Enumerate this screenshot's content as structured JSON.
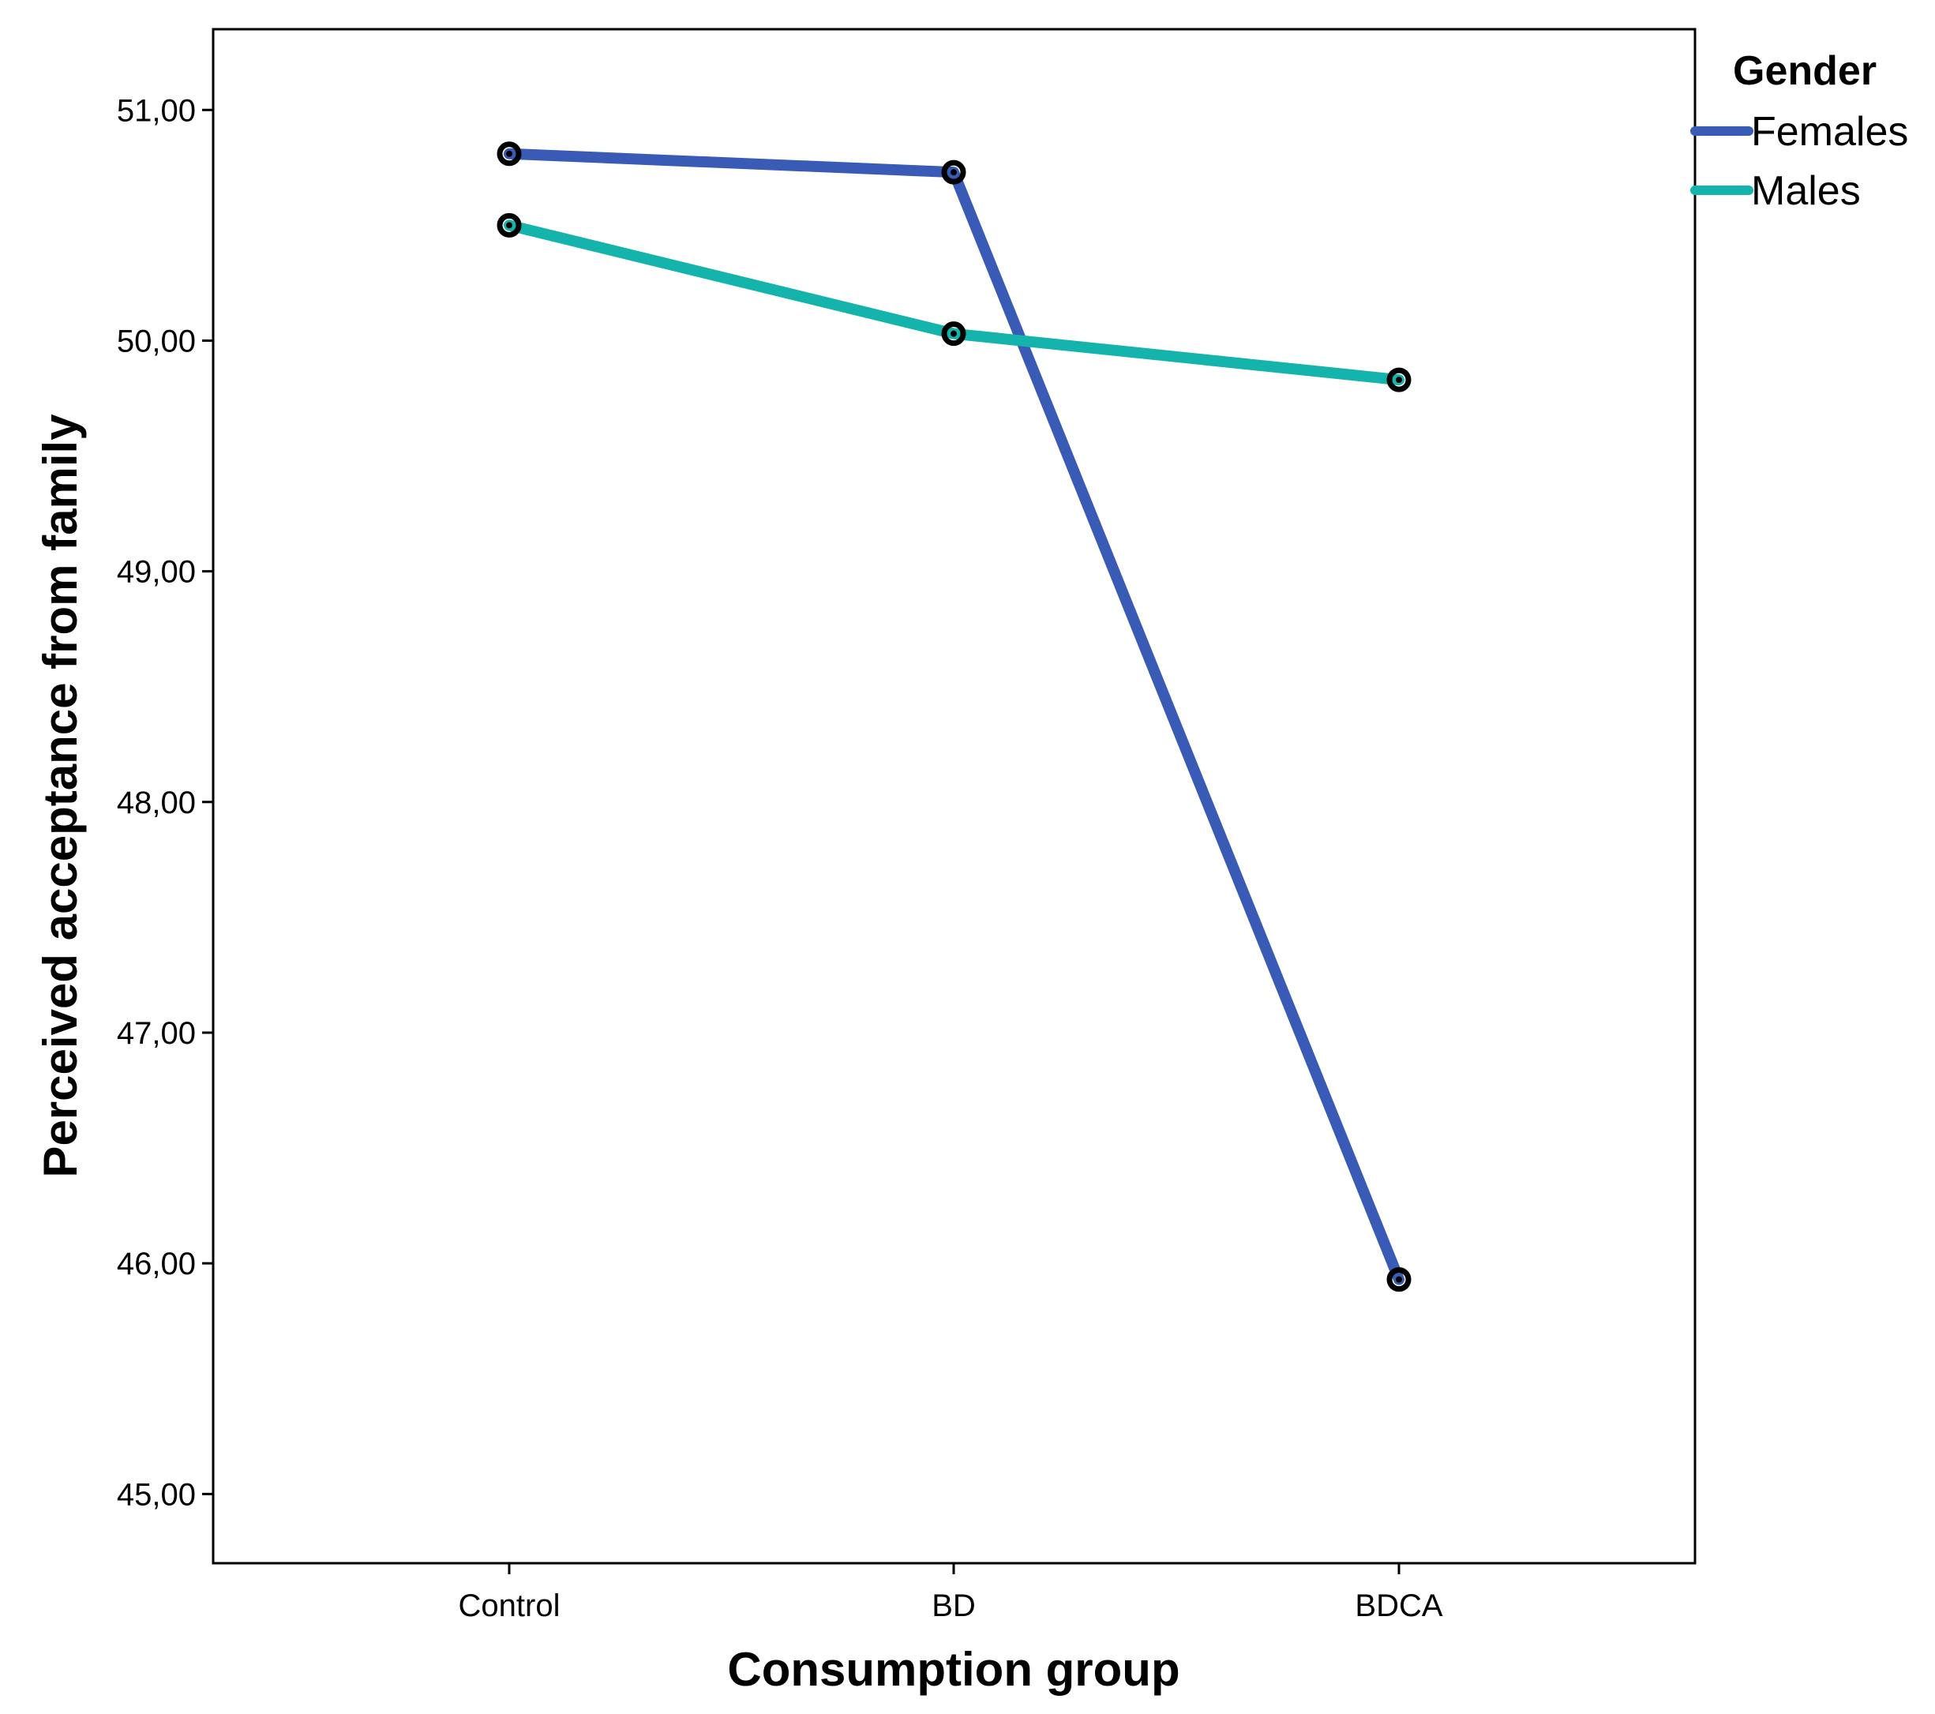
{
  "chart_data": {
    "type": "line",
    "xlabel": "Consumption group",
    "ylabel": "Perceived acceptance from family",
    "categories": [
      "Control",
      "BD",
      "BDCA"
    ],
    "ylim": [
      44.7,
      51.35
    ],
    "yticks": [
      45,
      46,
      47,
      48,
      49,
      50,
      51
    ],
    "ytick_labels": [
      "45,00",
      "46,00",
      "47,00",
      "48,00",
      "49,00",
      "50,00",
      "51,00"
    ],
    "legend": {
      "title": "Gender",
      "position": "top-right, outside plot"
    },
    "grid": false,
    "series": [
      {
        "name": "Females",
        "color": "#3a5bb5",
        "values": [
          50.81,
          50.73,
          45.93
        ]
      },
      {
        "name": "Males",
        "color": "#14b3ac",
        "values": [
          50.5,
          50.03,
          49.83
        ]
      }
    ],
    "marker_color": "#000000"
  }
}
